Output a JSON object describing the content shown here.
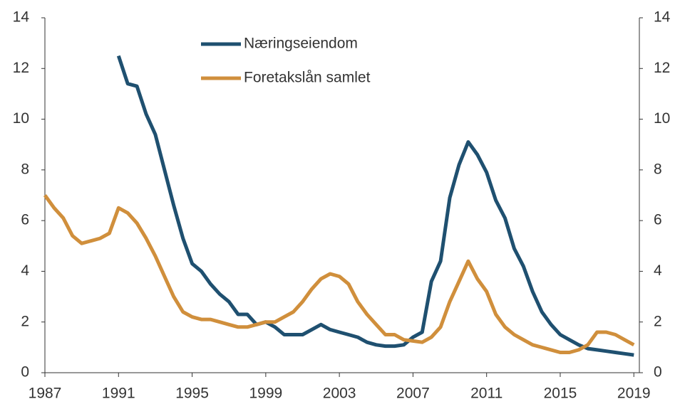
{
  "chart_data": {
    "type": "line",
    "x": [
      1987,
      1987.5,
      1988,
      1988.5,
      1989,
      1989.5,
      1990,
      1990.5,
      1991,
      1991.5,
      1992,
      1992.5,
      1993,
      1993.5,
      1994,
      1994.5,
      1995,
      1995.5,
      1996,
      1996.5,
      1997,
      1997.5,
      1998,
      1998.5,
      1999,
      1999.5,
      2000,
      2000.5,
      2001,
      2001.5,
      2002,
      2002.5,
      2003,
      2003.5,
      2004,
      2004.5,
      2005,
      2005.5,
      2006,
      2006.5,
      2007,
      2007.5,
      2008,
      2008.5,
      2009,
      2009.5,
      2010,
      2010.5,
      2011,
      2011.5,
      2012,
      2012.5,
      2013,
      2013.5,
      2014,
      2014.5,
      2015,
      2015.5,
      2016,
      2016.5,
      2017,
      2017.5,
      2018,
      2018.5,
      2019
    ],
    "series": [
      {
        "name": "Næringseiendom",
        "color": "#1f5070",
        "values": [
          null,
          null,
          null,
          null,
          null,
          null,
          null,
          null,
          12.5,
          11.4,
          11.3,
          10.2,
          9.4,
          8.0,
          6.6,
          5.3,
          4.3,
          4.0,
          3.5,
          3.1,
          2.8,
          2.3,
          2.3,
          1.9,
          2.0,
          1.8,
          1.5,
          1.5,
          1.5,
          1.7,
          1.9,
          1.7,
          1.6,
          1.5,
          1.4,
          1.2,
          1.1,
          1.05,
          1.05,
          1.1,
          1.4,
          1.6,
          3.6,
          4.4,
          6.9,
          8.2,
          9.1,
          8.6,
          7.9,
          6.8,
          6.1,
          4.9,
          4.2,
          3.2,
          2.4,
          1.9,
          1.5,
          1.3,
          1.1,
          0.95,
          0.9,
          0.85,
          0.8,
          0.75,
          0.7
        ]
      },
      {
        "name": "Foretakslån samlet",
        "color": "#d08f3c",
        "values": [
          7.0,
          6.5,
          6.1,
          5.4,
          5.1,
          5.2,
          5.3,
          5.5,
          6.5,
          6.3,
          5.9,
          5.3,
          4.6,
          3.8,
          3.0,
          2.4,
          2.2,
          2.1,
          2.1,
          2.0,
          1.9,
          1.8,
          1.8,
          1.9,
          2.0,
          2.0,
          2.2,
          2.4,
          2.8,
          3.3,
          3.7,
          3.9,
          3.8,
          3.5,
          2.8,
          2.3,
          1.9,
          1.5,
          1.5,
          1.3,
          1.25,
          1.2,
          1.4,
          1.8,
          2.8,
          3.6,
          4.4,
          3.7,
          3.2,
          2.3,
          1.8,
          1.5,
          1.3,
          1.1,
          1.0,
          0.9,
          0.8,
          0.8,
          0.9,
          1.1,
          1.6,
          1.6,
          1.5,
          1.3,
          1.1
        ]
      }
    ],
    "xlim": [
      1987,
      2019.3
    ],
    "xticks": [
      1987,
      1991,
      1995,
      1999,
      2003,
      2007,
      2011,
      2015,
      2019
    ],
    "ylim": [
      0,
      14
    ],
    "yticks": [
      0,
      2,
      4,
      6,
      8,
      10,
      12,
      14
    ],
    "y2lim": [
      0,
      14
    ],
    "y2ticks": [
      0,
      2,
      4,
      6,
      8,
      10,
      12,
      14
    ],
    "grid": false,
    "legend": "top"
  }
}
